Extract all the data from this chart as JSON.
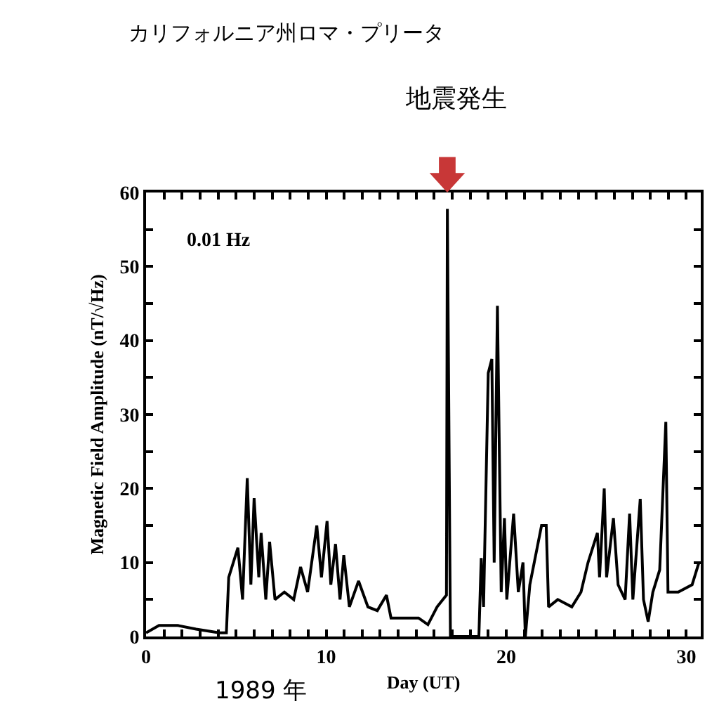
{
  "chart_data": {
    "type": "line",
    "title": "カリフォルニア州ロマ・プリータ",
    "xlabel": "Day (UT)",
    "ylabel": "Magnetic Field Amplitude (nT/√Hz)",
    "annotations": [
      "地震発生",
      "0.01 Hz",
      "1989 年"
    ],
    "x": [
      0,
      0.72,
      1.75,
      2.78,
      4.07,
      4.46,
      4.59,
      5.1,
      5.36,
      5.62,
      5.82,
      6.0,
      6.26,
      6.39,
      6.65,
      6.86,
      7.16,
      7.68,
      8.2,
      8.58,
      8.97,
      9.48,
      9.74,
      10.05,
      10.26,
      10.52,
      10.77,
      10.98,
      11.29,
      11.8,
      12.32,
      12.84,
      13.35,
      13.6,
      14.38,
      15.13,
      15.65,
      16.16,
      16.68,
      16.73,
      16.9,
      18.48,
      18.61,
      18.74,
      19.0,
      19.2,
      19.33,
      19.51,
      19.72,
      19.9,
      20.03,
      20.41,
      20.67,
      20.93,
      21.06,
      21.31,
      21.96,
      22.22,
      22.35,
      22.86,
      23.64,
      24.15,
      24.54,
      25.06,
      25.18,
      25.44,
      25.57,
      25.95,
      26.21,
      26.6,
      26.85,
      27.03,
      27.44,
      27.62,
      27.88,
      28.14,
      28.52,
      28.86,
      28.98,
      29.55,
      30.32,
      30.7
    ],
    "series": [
      {
        "color": "#000000",
        "values": [
          0.5,
          1.5,
          1.5,
          1.0,
          0.5,
          0.5,
          8,
          12,
          5,
          21.4,
          7,
          18.7,
          8,
          14,
          5,
          12.8,
          5,
          6,
          5,
          9.4,
          6,
          15,
          8,
          15.6,
          7,
          12.5,
          5,
          11,
          4,
          7.5,
          4,
          3.5,
          5.6,
          2.5,
          2.5,
          2.5,
          1.6,
          4,
          5.6,
          57.8,
          0,
          0,
          10.6,
          4,
          35.6,
          37.5,
          10,
          44.7,
          6,
          16,
          5,
          16.6,
          6,
          10,
          0,
          7,
          15,
          15,
          4,
          5,
          4,
          6,
          10,
          14,
          8,
          20,
          8,
          16,
          7,
          5,
          16.6,
          5,
          18.6,
          5,
          2,
          6,
          9,
          29,
          6,
          6,
          7,
          10
        ]
      }
    ],
    "xlim": [
      0,
      30.8
    ],
    "ylim": [
      0,
      60
    ],
    "xticks": [
      0,
      {
        "value": 1,
        "label": null
      },
      {
        "value": 2,
        "label": null
      },
      {
        "value": 3,
        "label": null
      },
      {
        "value": 4,
        "label": null
      },
      {
        "value": 5,
        "label": null
      },
      {
        "value": 6,
        "label": null
      },
      {
        "value": 7,
        "label": null
      },
      {
        "value": 8,
        "label": null
      },
      {
        "value": 9,
        "label": null
      },
      10,
      {
        "value": 11,
        "label": null
      },
      {
        "value": 12,
        "label": null
      },
      {
        "value": 13,
        "label": null
      },
      {
        "value": 14,
        "label": null
      },
      {
        "value": 15,
        "label": null
      },
      {
        "value": 16,
        "label": null
      },
      {
        "value": 17,
        "label": null
      },
      {
        "value": 18,
        "label": null
      },
      {
        "value": 19,
        "label": null
      },
      20,
      {
        "value": 21,
        "label": null
      },
      {
        "value": 22,
        "label": null
      },
      {
        "value": 23,
        "label": null
      },
      {
        "value": 24,
        "label": null
      },
      {
        "value": 25,
        "label": null
      },
      {
        "value": 26,
        "label": null
      },
      {
        "value": 27,
        "label": null
      },
      {
        "value": 28,
        "label": null
      },
      {
        "value": 29,
        "label": null
      },
      30
    ],
    "yticks": [
      0,
      {
        "value": 5,
        "label": null
      },
      10,
      {
        "value": 15,
        "label": null
      },
      20,
      {
        "value": 25,
        "label": null
      },
      30,
      {
        "value": 35,
        "label": null
      },
      40,
      {
        "value": 45,
        "label": null
      },
      50,
      {
        "value": 55,
        "label": null
      },
      60
    ],
    "line_style": "solid",
    "marker": "none"
  }
}
